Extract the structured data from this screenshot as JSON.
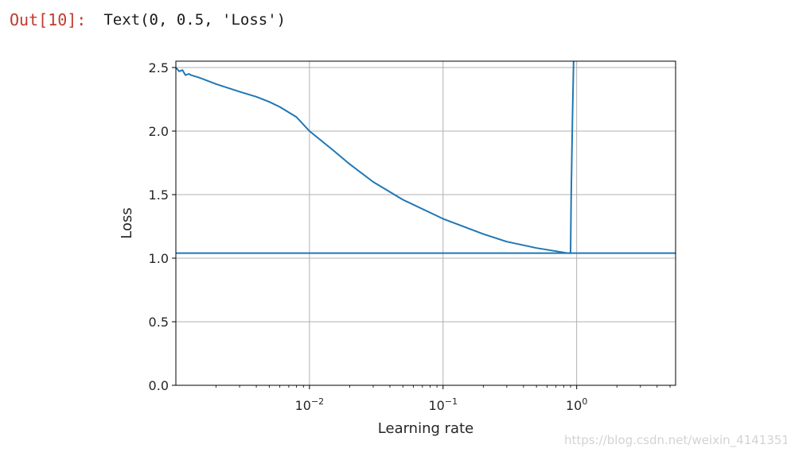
{
  "cell_output": {
    "prompt": "Out[10]:",
    "text": "Text(0, 0.5, 'Loss')"
  },
  "chart_data": {
    "type": "line",
    "title": "",
    "xlabel": "Learning rate",
    "ylabel": "Loss",
    "xscale": "log",
    "xlim": [
      0.001,
      5.5
    ],
    "ylim": [
      0,
      2.55
    ],
    "grid": true,
    "xticks": [
      {
        "value": 0.01,
        "base": "10",
        "exp": "−2"
      },
      {
        "value": 0.1,
        "base": "10",
        "exp": "−1"
      },
      {
        "value": 1,
        "base": "10",
        "exp": "0"
      }
    ],
    "yticks": [
      {
        "value": 0.0,
        "label": "0.0"
      },
      {
        "value": 0.5,
        "label": "0.5"
      },
      {
        "value": 1.0,
        "label": "1.0"
      },
      {
        "value": 1.5,
        "label": "1.5"
      },
      {
        "value": 2.0,
        "label": "2.0"
      },
      {
        "value": 2.5,
        "label": "2.5"
      }
    ],
    "color": "#1f77b4",
    "series": [
      {
        "x": [
          0.001,
          0.00106,
          0.00112,
          0.00118,
          0.00125,
          0.0013,
          0.0015,
          0.002,
          0.003,
          0.004,
          0.005,
          0.006,
          0.008,
          0.01,
          0.015,
          0.02,
          0.03,
          0.05,
          0.1,
          0.2,
          0.3,
          0.5,
          0.7,
          0.8,
          0.85,
          0.88,
          0.9,
          0.91,
          0.93,
          0.95
        ],
        "y": [
          2.5,
          2.47,
          2.48,
          2.44,
          2.45,
          2.44,
          2.42,
          2.37,
          2.31,
          2.27,
          2.23,
          2.19,
          2.11,
          2.0,
          1.85,
          1.74,
          1.6,
          1.46,
          1.31,
          1.19,
          1.13,
          1.08,
          1.055,
          1.045,
          1.04,
          1.04,
          1.04,
          1.5,
          2.1,
          2.6
        ]
      },
      {
        "x": [
          0.001,
          5.5
        ],
        "y": [
          1.04,
          1.04
        ]
      }
    ]
  },
  "watermark": "https://blog.csdn.net/weixin_41413511"
}
